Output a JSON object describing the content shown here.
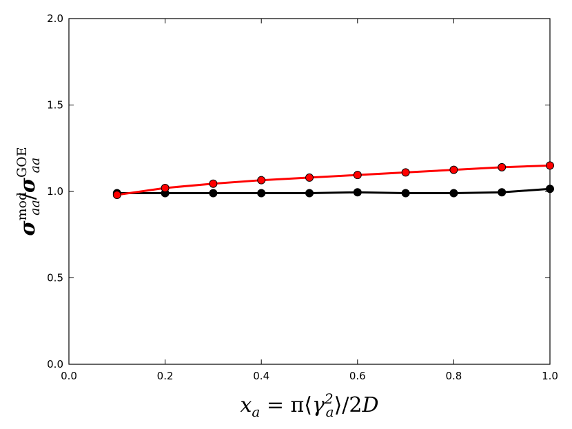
{
  "chart_data": {
    "type": "line",
    "xlabel": "x_a = π⟨γ_a²⟩/2D",
    "ylabel": "σ_aa^mod / σ_aa^GOE",
    "xlim": [
      0.0,
      1.0
    ],
    "ylim": [
      0.0,
      2.0
    ],
    "x_ticks": [
      "0.0",
      "0.2",
      "0.4",
      "0.6",
      "0.8",
      "1.0"
    ],
    "y_ticks": [
      "0.0",
      "0.5",
      "1.0",
      "1.5",
      "2.0"
    ],
    "grid": false,
    "legend": "none",
    "x": [
      0.1,
      0.2,
      0.3,
      0.4,
      0.5,
      0.6,
      0.7,
      0.8,
      0.9,
      1.0
    ],
    "series": [
      {
        "color": "#000000",
        "values": [
          0.99,
          0.99,
          0.99,
          0.99,
          0.99,
          0.995,
          0.99,
          0.99,
          0.995,
          1.015
        ]
      },
      {
        "color": "#ff0000",
        "values": [
          0.98,
          1.02,
          1.045,
          1.065,
          1.08,
          1.095,
          1.11,
          1.125,
          1.14,
          1.15
        ]
      }
    ]
  }
}
